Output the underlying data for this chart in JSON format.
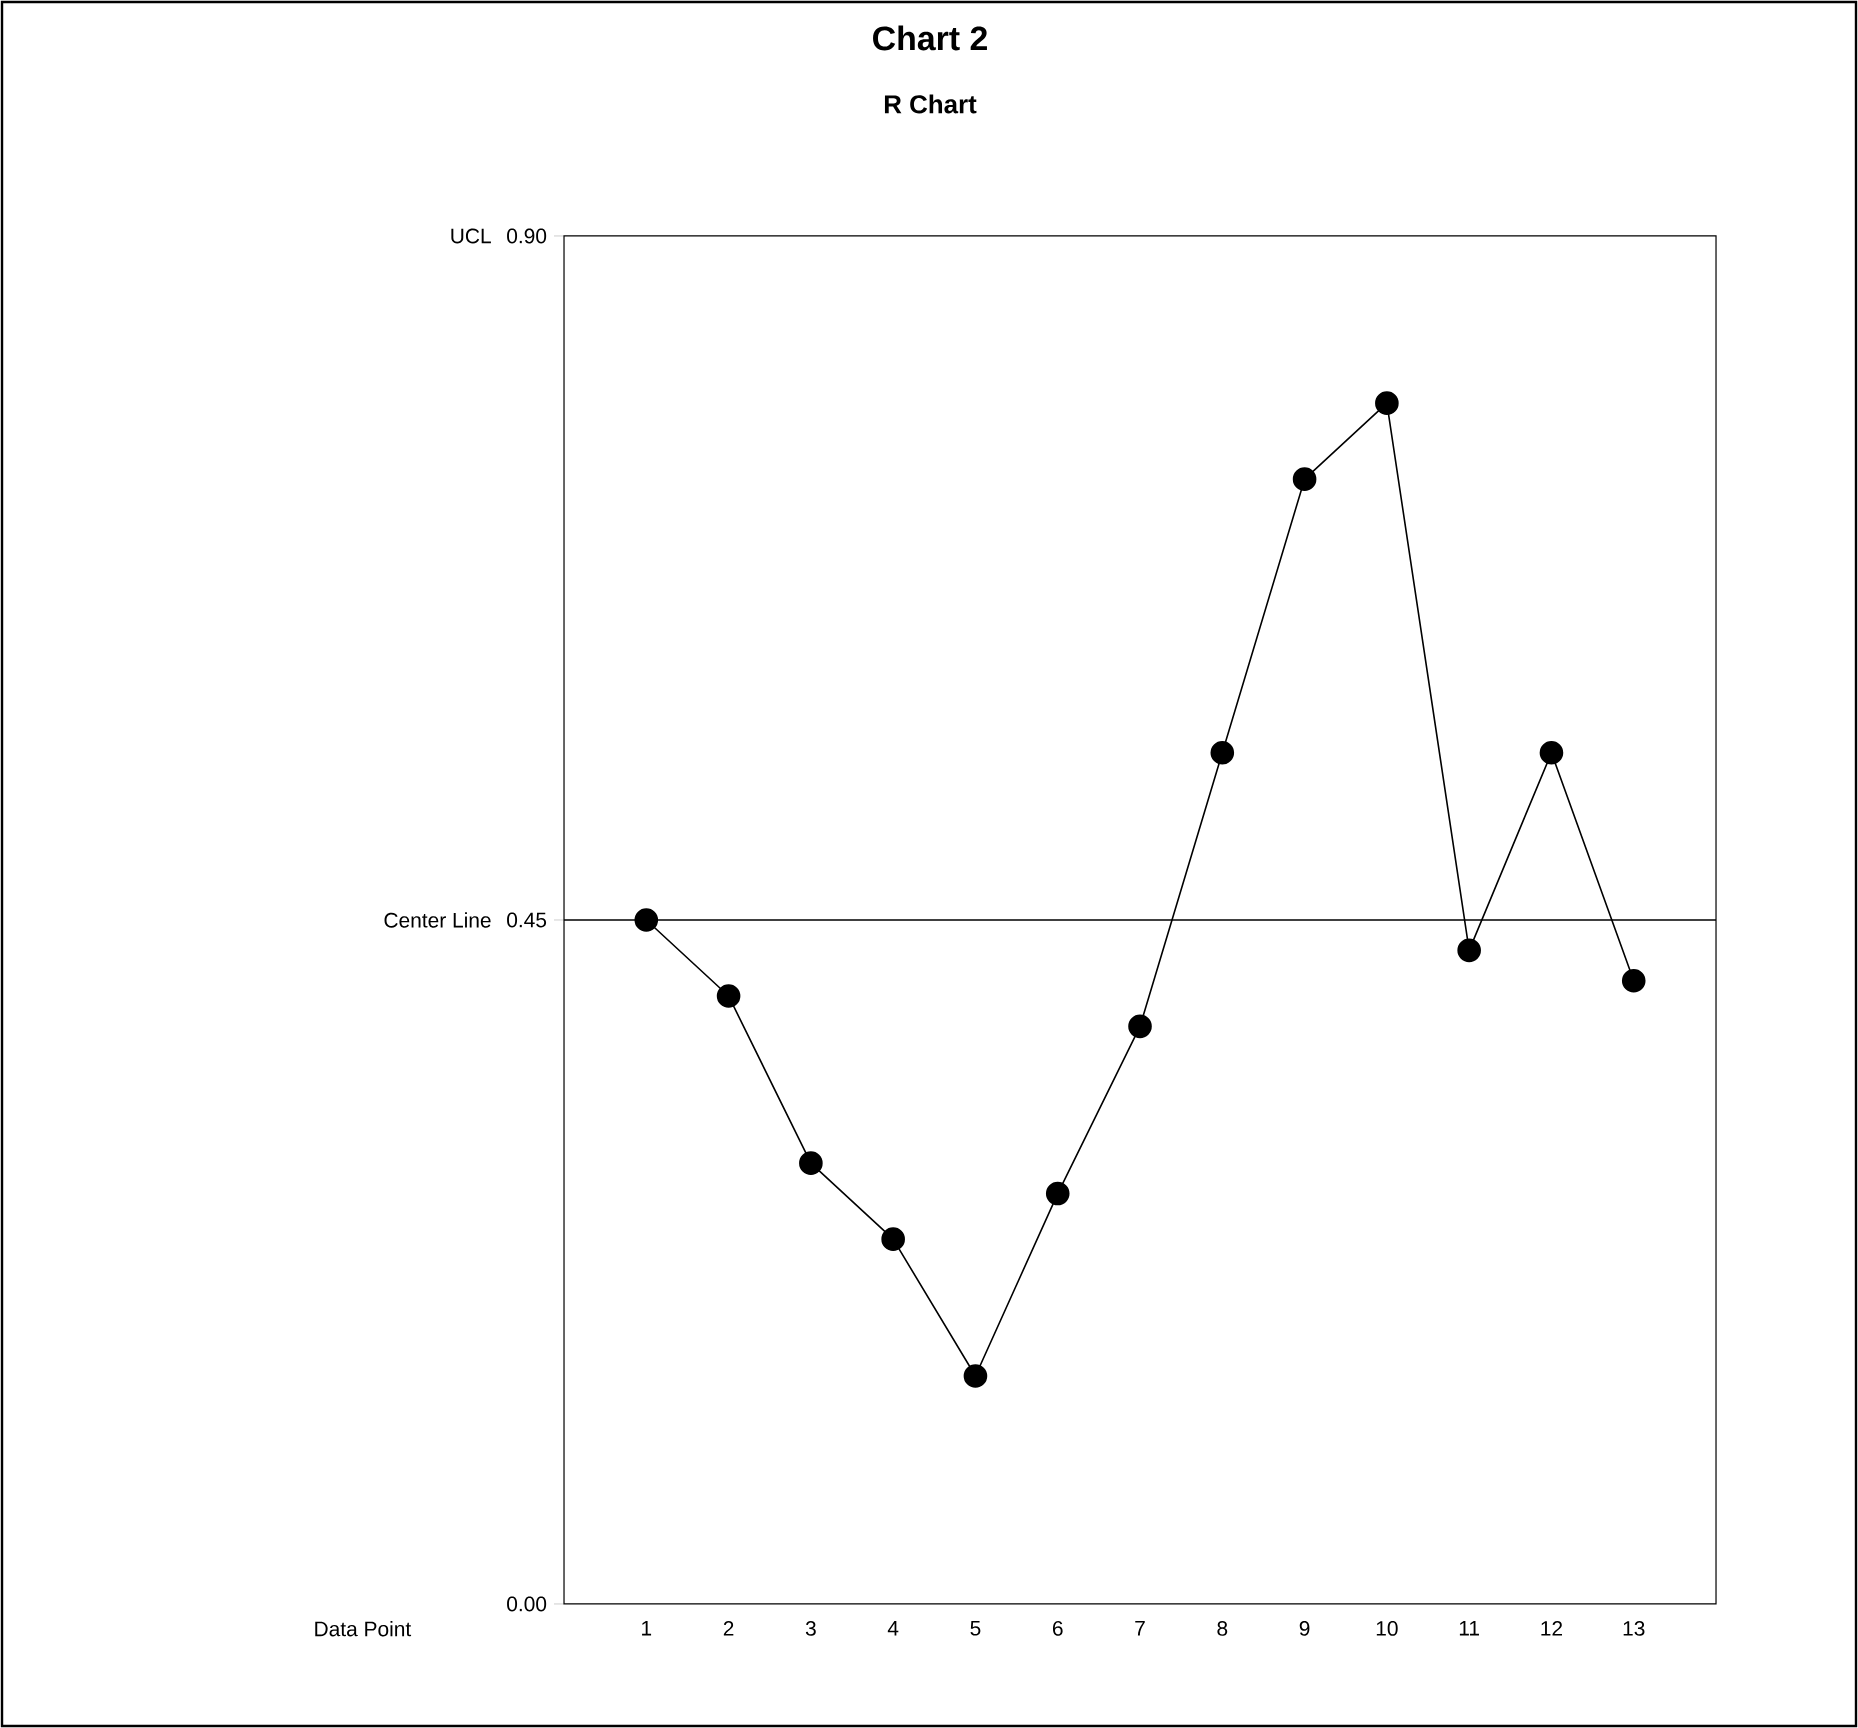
{
  "chart_data": {
    "type": "line",
    "title": "Chart 2",
    "subtitle": "R Chart",
    "xlabel": "Data Point",
    "categories": [
      "1",
      "2",
      "3",
      "4",
      "5",
      "6",
      "7",
      "8",
      "9",
      "10",
      "11",
      "12",
      "13"
    ],
    "series": [
      {
        "color": "#000000",
        "values": [
          0.45,
          0.4,
          0.29,
          0.24,
          0.15,
          0.27,
          0.38,
          0.56,
          0.74,
          0.79,
          0.43,
          0.56,
          0.41
        ]
      }
    ],
    "ylim": [
      0,
      0.9
    ],
    "yticks": [
      {
        "value": 0,
        "label": "0.00"
      },
      {
        "value": 0.45,
        "label": "0.45"
      },
      {
        "value": 0.9,
        "label": "0.90"
      }
    ],
    "ref_lines": [
      {
        "axis": "y",
        "value": 0.45,
        "label": "Center Line",
        "color": "#000000"
      }
    ],
    "annotations": [
      "UCL"
    ],
    "marker": "circle",
    "line_style": "solid"
  }
}
